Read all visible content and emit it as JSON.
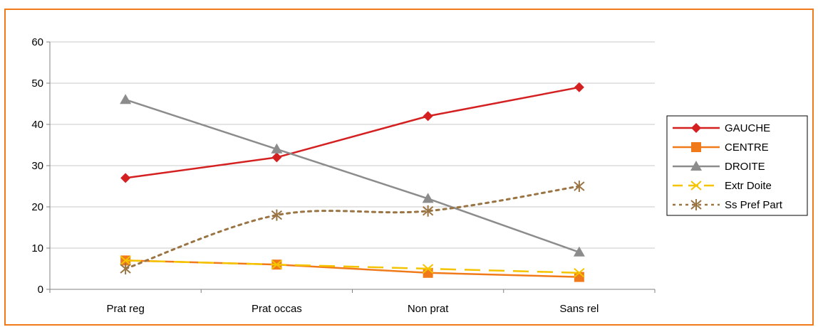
{
  "chart_data": {
    "type": "line",
    "title": "",
    "xlabel": "",
    "ylabel": "",
    "categories": [
      "Prat reg",
      "Prat occas",
      "Non prat",
      "Sans rel"
    ],
    "ylim": [
      0,
      60
    ],
    "yticks": [
      0,
      10,
      20,
      30,
      40,
      50,
      60
    ],
    "grid": true,
    "legend_position": "right",
    "series": [
      {
        "name": "GAUCHE",
        "values": [
          27,
          32,
          42,
          49
        ],
        "color": "#d42020",
        "marker": "diamond",
        "dash": "solid"
      },
      {
        "name": "CENTRE",
        "values": [
          7,
          6,
          4,
          3
        ],
        "color": "#f07a1a",
        "marker": "square",
        "dash": "solid"
      },
      {
        "name": "DROITE",
        "values": [
          46,
          34,
          22,
          9
        ],
        "color": "#8c8c8c",
        "marker": "triangle",
        "dash": "solid"
      },
      {
        "name": "Extr Doite",
        "values": [
          7,
          6,
          5,
          4
        ],
        "color": "#f5c400",
        "marker": "x",
        "dash": "long-dash"
      },
      {
        "name": "Ss Pref Part",
        "values": [
          5,
          18,
          19,
          25
        ],
        "color": "#9a7443",
        "marker": "asterisk",
        "dash": "dotted"
      }
    ]
  },
  "colors": {
    "frame_border": "#f07a1a",
    "grid": "#c8c8c8",
    "axis": "#808080"
  }
}
